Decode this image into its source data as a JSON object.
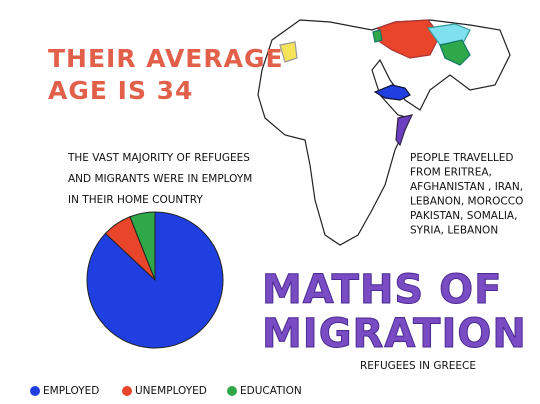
{
  "headline_lines": [
    "THEIR AVERAGE",
    "AGE IS 34"
  ],
  "title_lines": [
    "MATHS OF",
    "MIGRATION"
  ],
  "subtitle": "REFUGEES IN GREECE",
  "map_note_lines": [
    "PEOPLE TRAVELLED",
    "FROM ERITREA,",
    "AFGHANISTAN , IRAN,",
    "LEBANON, MOROCCO",
    "PAKISTAN, SOMALIA,",
    "SYRIA, LEBANON"
  ],
  "chart_data": {
    "type": "pie",
    "title_lines": [
      "THE VAST MAJORITY OF REFUGEES",
      "AND MIGRANTS WERE IN EMPLOYM",
      "IN THEIR HOME COUNTRY"
    ],
    "categories": [
      "EMPLOYED",
      "UNEMPLOYED",
      "EDUCATION"
    ],
    "values": [
      87,
      7,
      6
    ],
    "colors": [
      "#1f3fe0",
      "#e8452a",
      "#2fa84a"
    ]
  }
}
